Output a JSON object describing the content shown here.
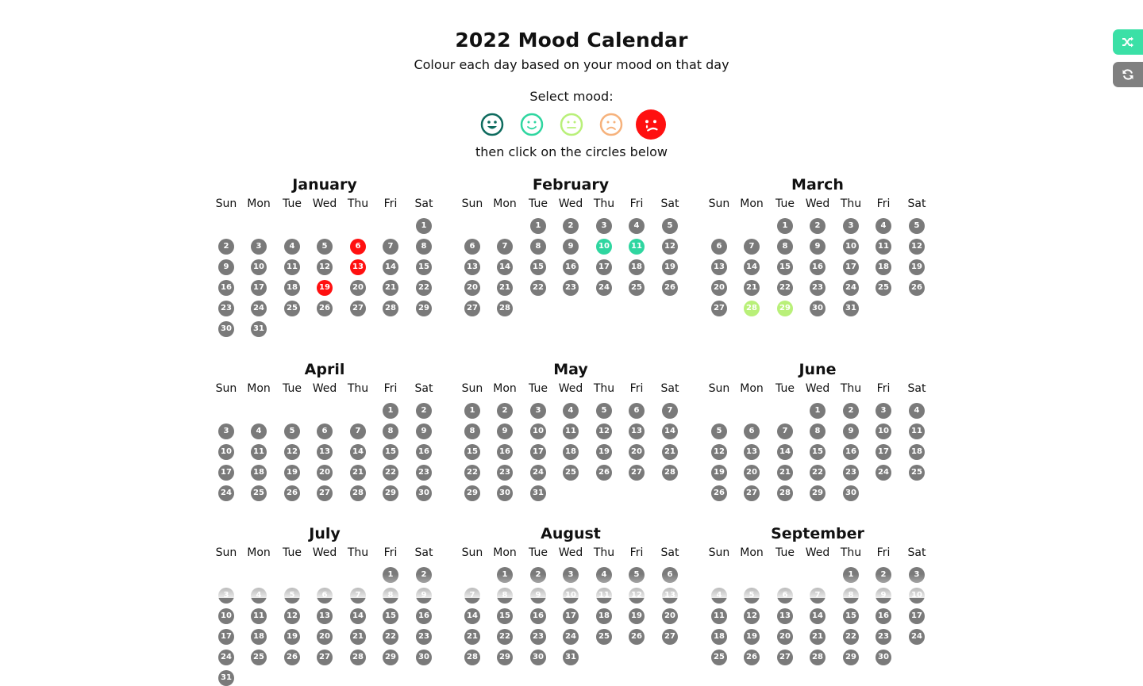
{
  "header": {
    "title": "2022 Mood Calendar",
    "subtitle": "Colour each day based on your mood on that day",
    "select_label": "Select mood:",
    "instruction": "then click on the circles below"
  },
  "moods": [
    {
      "name": "grin",
      "color": "#0e6b5e",
      "selected": false
    },
    {
      "name": "smile",
      "color": "#2fd6a0",
      "selected": false
    },
    {
      "name": "neutral",
      "color": "#b9f079",
      "selected": false
    },
    {
      "name": "frown",
      "color": "#f6b27c",
      "selected": false
    },
    {
      "name": "sad-tear",
      "color": "#ff1010",
      "selected": true
    }
  ],
  "side_buttons": [
    {
      "name": "shuffle-button",
      "icon": "shuffle-icon",
      "color": "#3be0a6"
    },
    {
      "name": "refresh-button",
      "icon": "refresh-icon",
      "color": "#808080"
    }
  ],
  "weekday_labels": [
    "Sun",
    "Mon",
    "Tue",
    "Wed",
    "Thu",
    "Fri",
    "Sat"
  ],
  "default_day_color": "#7a7a7a",
  "months": [
    {
      "name": "January",
      "days": 31,
      "start": 6,
      "colored": {
        "6": "#ff1010",
        "13": "#ff1010",
        "19": "#ff1010"
      }
    },
    {
      "name": "February",
      "days": 28,
      "start": 2,
      "colored": {
        "10": "#2fd6a0",
        "11": "#2fd6a0"
      }
    },
    {
      "name": "March",
      "days": 31,
      "start": 2,
      "colored": {
        "28": "#b9f079",
        "29": "#b9f079"
      }
    },
    {
      "name": "April",
      "days": 30,
      "start": 5,
      "colored": {}
    },
    {
      "name": "May",
      "days": 31,
      "start": 0,
      "colored": {}
    },
    {
      "name": "June",
      "days": 30,
      "start": 3,
      "colored": {}
    },
    {
      "name": "July",
      "days": 31,
      "start": 5,
      "colored": {}
    },
    {
      "name": "August",
      "days": 31,
      "start": 1,
      "colored": {}
    },
    {
      "name": "September",
      "days": 30,
      "start": 4,
      "colored": {}
    }
  ]
}
